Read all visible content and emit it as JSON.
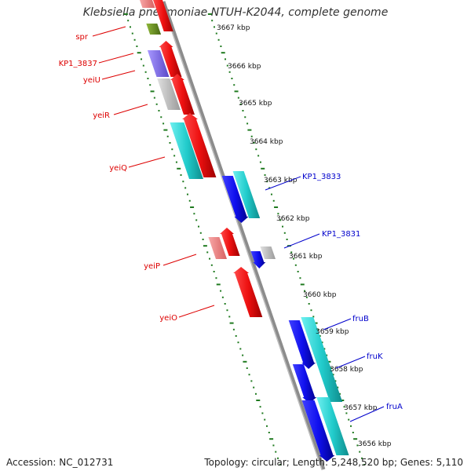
{
  "title": "Klebsiella pneumoniae NTUH-K2044, complete genome",
  "accession_text": "Accession: NC_012731",
  "topology_text": "Topology: circular; Length: 5,248,520 bp; Genes: 5,110",
  "colors": {
    "backbone": "#8c8c8c",
    "tick": "#1f7a1f",
    "forward_label": "#dd0000",
    "reverse_label": "#0000cc",
    "red": "#ee1111",
    "pink": "#f08080",
    "blue": "#1010ee",
    "cyan": "#22cccc",
    "gray": "#c0c0c0",
    "purple": "#7b68ee",
    "olive": "#6b8e23"
  },
  "axis_labels": [
    "3667 kbp",
    "3666 kbp",
    "3665 kbp",
    "3664 kbp",
    "3663 kbp",
    "3662 kbp",
    "3661 kbp",
    "3660 kbp",
    "3659 kbp",
    "3658 kbp",
    "3657 kbp",
    "3656 kbp"
  ],
  "forward_gene_labels": [
    "spr",
    "KP1_3837",
    "yeiU",
    "yeiR",
    "yeiQ",
    "yeiP",
    "yeiO"
  ],
  "reverse_gene_labels": [
    "KP1_3833",
    "KP1_3831",
    "fruB",
    "fruK",
    "fruA"
  ]
}
